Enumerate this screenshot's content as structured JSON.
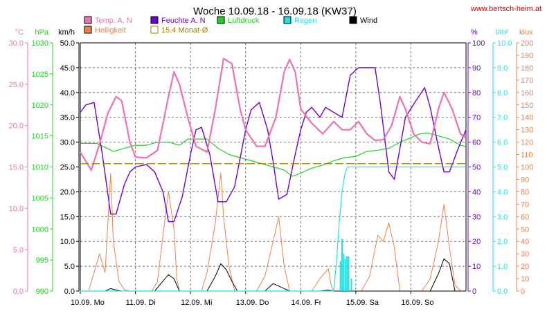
{
  "chart_data": {
    "type": "line",
    "title": "Woche 10.09.18 - 16.09.18 (KW37)",
    "source": "www.bertsch-heim.at",
    "colors": {
      "temp": "#f070b0",
      "hum": "#6a00d8",
      "pres": "#20d020",
      "rain": "#20e0e0",
      "wind": "#000000",
      "lux": "#f08048",
      "avg": "#a08000"
    },
    "legend": [
      {
        "key": "temp",
        "label": "Temp. A. N",
        "col": 0,
        "row": 0
      },
      {
        "key": "hum",
        "label": "Feuchte A. N",
        "col": 1,
        "row": 0
      },
      {
        "key": "pres",
        "label": "Luftdruck",
        "col": 2,
        "row": 0
      },
      {
        "key": "rain",
        "label": "Regen",
        "col": 3,
        "row": 0
      },
      {
        "key": "wind",
        "label": "Wind",
        "col": 4,
        "row": 0
      },
      {
        "key": "lux",
        "label": "Helligkeit",
        "col": 0,
        "row": 1
      },
      {
        "key": "avg",
        "label": "15.4 Monat-Ø",
        "col": 1,
        "row": 1,
        "hollow": true
      }
    ],
    "axes": {
      "temp": {
        "unit": "°C",
        "min": 0,
        "max": 30,
        "ticks": [
          "0.0",
          "5.0",
          "10.0",
          "15.0",
          "20.0",
          "25.0",
          "30.0"
        ]
      },
      "pres": {
        "unit": "hPa",
        "min": 990,
        "max": 1030,
        "ticks": [
          "990",
          "995",
          "1000",
          "1005",
          "1010",
          "1015",
          "1020",
          "1025",
          "1030"
        ]
      },
      "wind": {
        "unit": "km/h",
        "min": 0,
        "max": 50,
        "ticks": [
          "0.0",
          "5.0",
          "10.0",
          "15.0",
          "20.0",
          "25.0",
          "30.0",
          "35.0",
          "40.0",
          "45.0",
          "50.0"
        ]
      },
      "hum": {
        "unit": "%",
        "min": 0,
        "max": 100,
        "ticks": [
          "0",
          "10",
          "20",
          "30",
          "40",
          "50",
          "60",
          "70",
          "80",
          "90",
          "100"
        ]
      },
      "rain": {
        "unit": "l/m²",
        "min": 0,
        "max": 10,
        "ticks": [
          "0.0",
          "1.0",
          "2.0",
          "3.0",
          "4.0",
          "5.0",
          "6.0",
          "7.0",
          "8.0",
          "9.0",
          "10.0"
        ]
      },
      "lux": {
        "unit": "klux",
        "min": 0,
        "max": 200,
        "ticks": [
          "0",
          "10",
          "20",
          "30",
          "40",
          "50",
          "60",
          "70",
          "80",
          "90",
          "100",
          "110",
          "120",
          "130",
          "140",
          "150",
          "160",
          "170",
          "180",
          "190",
          "200"
        ]
      }
    },
    "days": [
      "10.09.  Mo",
      "11.09.  Di",
      "12.09.  Mi",
      "13.09.  Do",
      "14.09.  Fr",
      "15.09.  Sa",
      "16.09.  So"
    ],
    "x_range": [
      0,
      7
    ],
    "grid": true,
    "series": {
      "temp": [
        [
          0,
          16.8
        ],
        [
          0.2,
          14.6
        ],
        [
          0.35,
          17.8
        ],
        [
          0.5,
          21.5
        ],
        [
          0.65,
          23.5
        ],
        [
          0.75,
          23.0
        ],
        [
          0.9,
          18
        ],
        [
          1.0,
          16.2
        ],
        [
          1.2,
          16.1
        ],
        [
          1.4,
          17.0
        ],
        [
          1.6,
          23.5
        ],
        [
          1.7,
          26.5
        ],
        [
          1.8,
          25
        ],
        [
          1.95,
          21
        ],
        [
          2.1,
          17.5
        ],
        [
          2.3,
          16.8
        ],
        [
          2.45,
          22
        ],
        [
          2.6,
          28.1
        ],
        [
          2.75,
          27.5
        ],
        [
          2.9,
          22
        ],
        [
          3.0,
          19.5
        ],
        [
          3.2,
          17.5
        ],
        [
          3.35,
          17.5
        ],
        [
          3.55,
          21
        ],
        [
          3.7,
          26.5
        ],
        [
          3.8,
          28.0
        ],
        [
          3.9,
          26.5
        ],
        [
          4.0,
          22
        ],
        [
          4.2,
          20.3
        ],
        [
          4.4,
          19.0
        ],
        [
          4.6,
          20.5
        ],
        [
          4.75,
          19.5
        ],
        [
          4.9,
          19.5
        ],
        [
          5.05,
          20.5
        ],
        [
          5.2,
          19.0
        ],
        [
          5.35,
          18.2
        ],
        [
          5.5,
          18.3
        ],
        [
          5.65,
          20
        ],
        [
          5.8,
          23.5
        ],
        [
          5.9,
          22
        ],
        [
          6.05,
          19
        ],
        [
          6.2,
          18
        ],
        [
          6.35,
          17.8
        ],
        [
          6.5,
          22
        ],
        [
          6.6,
          24
        ],
        [
          6.75,
          22
        ],
        [
          6.9,
          19
        ],
        [
          7.0,
          18.5
        ]
      ],
      "hum": [
        [
          0,
          72
        ],
        [
          0.1,
          75
        ],
        [
          0.25,
          76
        ],
        [
          0.4,
          55
        ],
        [
          0.55,
          31
        ],
        [
          0.65,
          31
        ],
        [
          0.8,
          43
        ],
        [
          0.9,
          48
        ],
        [
          1.0,
          50
        ],
        [
          1.2,
          51
        ],
        [
          1.35,
          48
        ],
        [
          1.5,
          40
        ],
        [
          1.6,
          28
        ],
        [
          1.7,
          28
        ],
        [
          1.85,
          38
        ],
        [
          2.0,
          55
        ],
        [
          2.1,
          65
        ],
        [
          2.2,
          66
        ],
        [
          2.35,
          55
        ],
        [
          2.5,
          36
        ],
        [
          2.65,
          36
        ],
        [
          2.8,
          42
        ],
        [
          3.0,
          65
        ],
        [
          3.1,
          73
        ],
        [
          3.25,
          76
        ],
        [
          3.4,
          65
        ],
        [
          3.5,
          52
        ],
        [
          3.6,
          37
        ],
        [
          3.75,
          39
        ],
        [
          3.9,
          55
        ],
        [
          4.0,
          65
        ],
        [
          4.1,
          72
        ],
        [
          4.2,
          74
        ],
        [
          4.35,
          70
        ],
        [
          4.45,
          74
        ],
        [
          4.6,
          72
        ],
        [
          4.75,
          70
        ],
        [
          4.9,
          87
        ],
        [
          5.05,
          90
        ],
        [
          5.2,
          90
        ],
        [
          5.35,
          90
        ],
        [
          5.45,
          75
        ],
        [
          5.6,
          48
        ],
        [
          5.7,
          45
        ],
        [
          5.9,
          70
        ],
        [
          6.1,
          77
        ],
        [
          6.25,
          82
        ],
        [
          6.35,
          74
        ],
        [
          6.5,
          58
        ],
        [
          6.6,
          48
        ],
        [
          6.7,
          48
        ],
        [
          6.85,
          57
        ],
        [
          7.0,
          65
        ]
      ],
      "pres": [
        [
          0,
          1013.8
        ],
        [
          0.3,
          1013.8
        ],
        [
          0.6,
          1012.5
        ],
        [
          0.8,
          1013.0
        ],
        [
          1.0,
          1013.5
        ],
        [
          1.2,
          1013.5
        ],
        [
          1.4,
          1014.0
        ],
        [
          1.6,
          1014.0
        ],
        [
          1.8,
          1013.5
        ],
        [
          1.95,
          1014.5
        ],
        [
          2.1,
          1014.5
        ],
        [
          2.3,
          1014.5
        ],
        [
          2.5,
          1013.0
        ],
        [
          2.7,
          1012.0
        ],
        [
          2.9,
          1011.5
        ],
        [
          3.1,
          1011.0
        ],
        [
          3.3,
          1010.5
        ],
        [
          3.5,
          1010.0
        ],
        [
          3.7,
          1009.5
        ],
        [
          3.85,
          1008.5
        ],
        [
          4.0,
          1009.0
        ],
        [
          4.2,
          1009.8
        ],
        [
          4.4,
          1010.3
        ],
        [
          4.6,
          1011.0
        ],
        [
          4.8,
          1011.5
        ],
        [
          5.0,
          1011.7
        ],
        [
          5.2,
          1012.5
        ],
        [
          5.4,
          1012.7
        ],
        [
          5.6,
          1013.0
        ],
        [
          5.8,
          1014.0
        ],
        [
          6.0,
          1014.7
        ],
        [
          6.15,
          1015.3
        ],
        [
          6.3,
          1015.5
        ],
        [
          6.5,
          1015.0
        ],
        [
          6.7,
          1014.5
        ],
        [
          6.9,
          1013.5
        ],
        [
          7.0,
          1013.3
        ]
      ],
      "rain": [
        [
          0,
          0
        ],
        [
          4.6,
          0
        ],
        [
          4.65,
          1.2
        ],
        [
          4.7,
          2.8
        ],
        [
          4.75,
          4.0
        ],
        [
          4.8,
          4.7
        ],
        [
          4.85,
          5.0
        ],
        [
          7.0,
          5.0
        ]
      ],
      "wind": [
        [
          0,
          0
        ],
        [
          0.45,
          0
        ],
        [
          0.55,
          0.5
        ],
        [
          0.65,
          0.2
        ],
        [
          0.75,
          0
        ],
        [
          1.35,
          0
        ],
        [
          1.5,
          2.0
        ],
        [
          1.6,
          3.3
        ],
        [
          1.7,
          2.5
        ],
        [
          1.8,
          0
        ],
        [
          2.3,
          0
        ],
        [
          2.45,
          3.0
        ],
        [
          2.55,
          5.5
        ],
        [
          2.65,
          4.3
        ],
        [
          2.75,
          2
        ],
        [
          2.85,
          0
        ],
        [
          3.35,
          0
        ],
        [
          3.5,
          1.5
        ],
        [
          3.6,
          1.0
        ],
        [
          3.7,
          0.5
        ],
        [
          3.8,
          0
        ],
        [
          4.35,
          0
        ],
        [
          4.5,
          0.2
        ],
        [
          4.6,
          0
        ],
        [
          6.35,
          0
        ],
        [
          6.5,
          3.5
        ],
        [
          6.6,
          6.5
        ],
        [
          6.7,
          5.5
        ],
        [
          6.8,
          0
        ],
        [
          7.0,
          0
        ]
      ],
      "lux": [
        [
          0,
          0
        ],
        [
          0.15,
          0
        ],
        [
          0.25,
          15
        ],
        [
          0.35,
          30
        ],
        [
          0.45,
          15
        ],
        [
          0.55,
          95
        ],
        [
          0.6,
          40
        ],
        [
          0.7,
          8
        ],
        [
          0.8,
          1
        ],
        [
          0.9,
          0
        ],
        [
          1.3,
          0
        ],
        [
          1.4,
          8
        ],
        [
          1.5,
          45
        ],
        [
          1.6,
          80
        ],
        [
          1.7,
          50
        ],
        [
          1.75,
          10
        ],
        [
          1.8,
          0
        ],
        [
          2.2,
          0
        ],
        [
          2.3,
          15
        ],
        [
          2.45,
          55
        ],
        [
          2.55,
          95
        ],
        [
          2.6,
          60
        ],
        [
          2.7,
          20
        ],
        [
          2.8,
          0
        ],
        [
          3.2,
          0
        ],
        [
          3.35,
          12
        ],
        [
          3.5,
          40
        ],
        [
          3.6,
          60
        ],
        [
          3.7,
          20
        ],
        [
          3.8,
          0
        ],
        [
          4.2,
          0
        ],
        [
          4.35,
          10
        ],
        [
          4.5,
          18
        ],
        [
          4.55,
          5
        ],
        [
          4.6,
          0
        ],
        [
          5.1,
          0
        ],
        [
          5.25,
          12
        ],
        [
          5.4,
          45
        ],
        [
          5.5,
          40
        ],
        [
          5.6,
          55
        ],
        [
          5.7,
          35
        ],
        [
          5.8,
          0
        ],
        [
          6.2,
          0
        ],
        [
          6.35,
          10
        ],
        [
          6.5,
          40
        ],
        [
          6.6,
          70
        ],
        [
          6.7,
          35
        ],
        [
          6.8,
          5
        ],
        [
          6.9,
          0
        ],
        [
          7.0,
          0
        ]
      ]
    },
    "rain_bars": [
      [
        4.72,
        1.2
      ],
      [
        4.75,
        2.1
      ],
      [
        4.78,
        1.5
      ],
      [
        4.81,
        1.3
      ],
      [
        4.84,
        1.4
      ],
      [
        4.87,
        1.4
      ],
      [
        4.92,
        0.5
      ]
    ],
    "monthly_avg_temp": 15.4
  }
}
